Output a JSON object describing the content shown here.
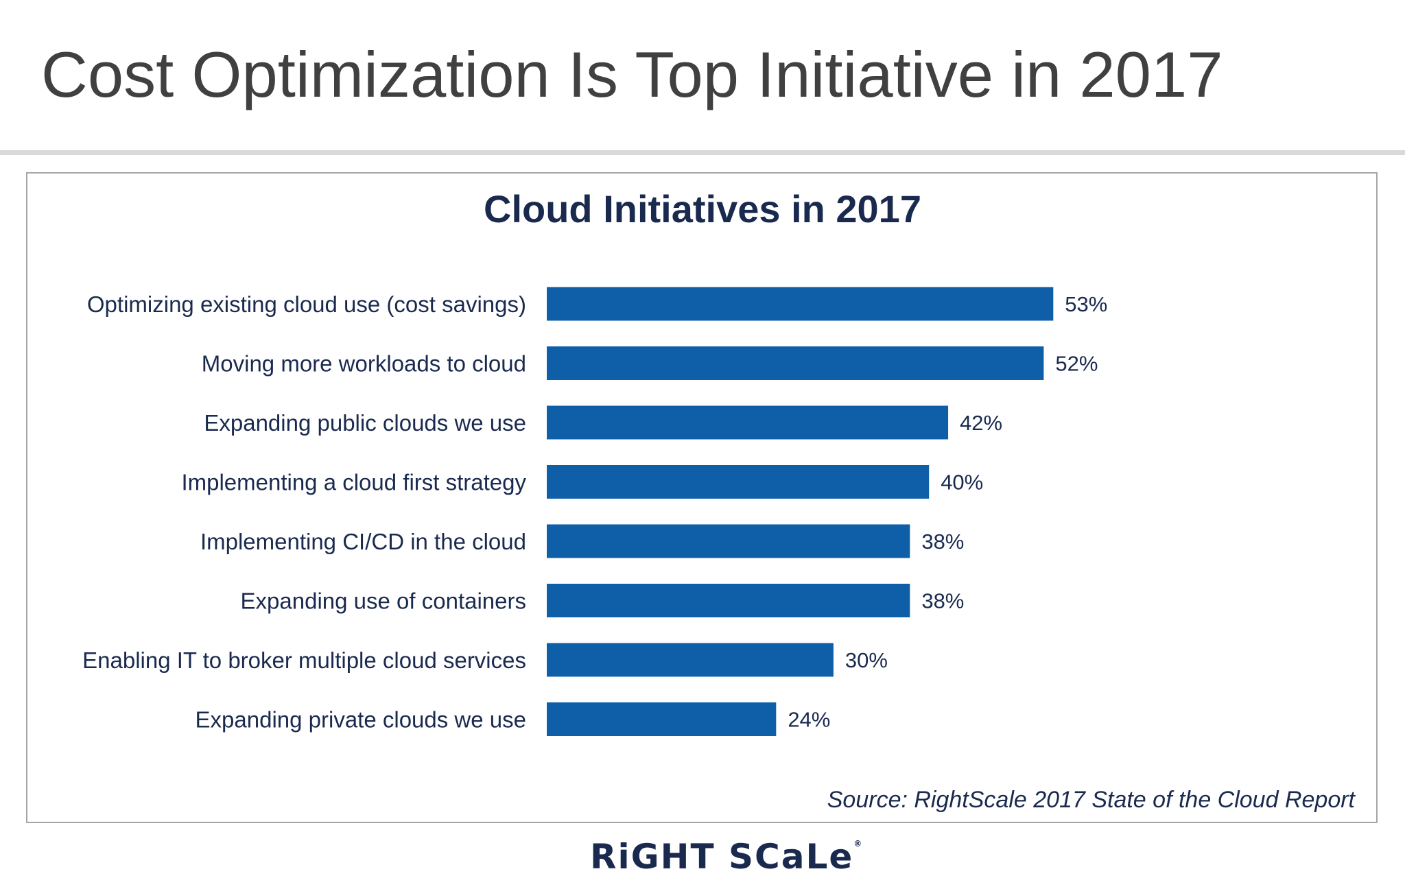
{
  "page": {
    "title": "Cost Optimization Is Top Initiative in 2017",
    "source": "Source: RightScale 2017 State of the Cloud Report",
    "logo_text": "RiGHT SCaLe"
  },
  "chart_data": {
    "type": "bar",
    "orientation": "horizontal",
    "title": "Cloud Initiatives in 2017",
    "categories": [
      "Optimizing existing cloud use (cost savings)",
      "Moving more workloads to cloud",
      "Expanding public clouds we use",
      "Implementing a cloud first strategy",
      "Implementing CI/CD in the cloud",
      "Expanding use of containers",
      "Enabling IT to broker multiple cloud services",
      "Expanding private clouds we use"
    ],
    "values": [
      53,
      52,
      42,
      40,
      38,
      38,
      30,
      24
    ],
    "value_labels": [
      "53%",
      "52%",
      "42%",
      "40%",
      "38%",
      "38%",
      "30%",
      "24%"
    ],
    "unit": "%",
    "xlim": [
      0,
      100
    ],
    "grid": false,
    "legend": "none",
    "bar_color": "#0e5ea8"
  }
}
